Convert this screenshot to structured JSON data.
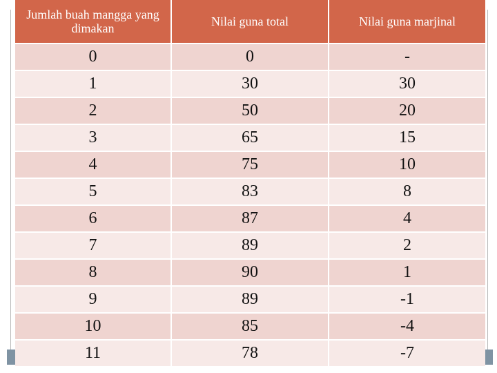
{
  "table": {
    "header": [
      "Jumlah buah mangga yang dimakan",
      "Nilai guna total",
      "Nilai guna marjinal"
    ],
    "rows": [
      [
        "0",
        "0",
        "-"
      ],
      [
        "1",
        "30",
        "30"
      ],
      [
        "2",
        "50",
        "20"
      ],
      [
        "3",
        "65",
        "15"
      ],
      [
        "4",
        "75",
        "10"
      ],
      [
        "5",
        "83",
        "8"
      ],
      [
        "6",
        "87",
        "4"
      ],
      [
        "7",
        "89",
        "2"
      ],
      [
        "8",
        "90",
        "1"
      ],
      [
        "9",
        "89",
        "-1"
      ],
      [
        "10",
        "85",
        "-4"
      ],
      [
        "11",
        "78",
        "-7"
      ]
    ]
  }
}
